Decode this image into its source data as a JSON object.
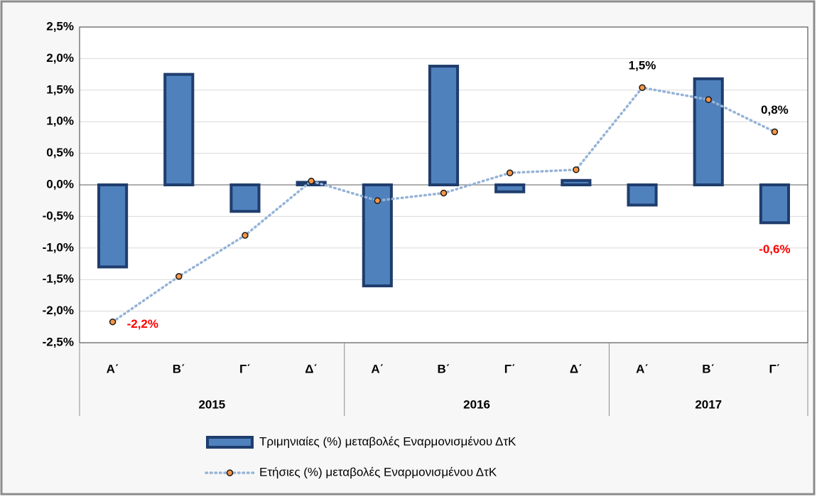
{
  "chart_data": {
    "type": "bar-line",
    "groups": [
      {
        "label": "2015",
        "categories": [
          "Α΄",
          "Β΄",
          "Γ΄",
          "Δ΄"
        ]
      },
      {
        "label": "2016",
        "categories": [
          "Α΄",
          "Β΄",
          "Γ΄",
          "Δ΄"
        ]
      },
      {
        "label": "2017",
        "categories": [
          "Α΄",
          "Β΄",
          "Γ΄"
        ]
      }
    ],
    "series": [
      {
        "name": "Τριμηνιαίες (%) μεταβολές Εναρμονισμένου ΔτΚ",
        "type": "bar",
        "color": "#4f81bd",
        "edge_color": "#1f3d6d",
        "values": [
          -1.3,
          1.75,
          -0.42,
          0.04,
          -1.6,
          1.88,
          -0.11,
          0.07,
          -0.32,
          1.68,
          -0.6
        ],
        "value_labels": [
          null,
          null,
          null,
          null,
          null,
          null,
          null,
          null,
          null,
          null,
          "-0,6%"
        ]
      },
      {
        "name": "Ετήσιες (%) μεταβολές Εναρμονισμένου ΔτΚ",
        "type": "line",
        "color": "#95b3d7",
        "marker_color": "#f79646",
        "values": [
          -2.17,
          -1.45,
          -0.8,
          0.06,
          -0.25,
          -0.13,
          0.19,
          0.24,
          1.54,
          1.35,
          0.84
        ],
        "value_labels": [
          "-2,2%",
          null,
          null,
          null,
          null,
          null,
          null,
          null,
          "1,5%",
          null,
          "0,8%"
        ]
      }
    ],
    "ylim": [
      -2.5,
      2.5
    ],
    "yticks": [
      {
        "value": -2.5,
        "label": "-2,5%"
      },
      {
        "value": -2,
        "label": "-2,0%"
      },
      {
        "value": -1.5,
        "label": "-1,5%"
      },
      {
        "value": -1,
        "label": "-1,0%"
      },
      {
        "value": -0.5,
        "label": "-0,5%"
      },
      {
        "value": 0,
        "label": "0,0%"
      },
      {
        "value": 0.5,
        "label": "0,5%"
      },
      {
        "value": 1,
        "label": "1,0%"
      },
      {
        "value": 1.5,
        "label": "1,5%"
      },
      {
        "value": 2,
        "label": "2,0%"
      },
      {
        "value": 2.5,
        "label": "2,5%"
      }
    ],
    "grid": true,
    "legend": "bottom"
  }
}
